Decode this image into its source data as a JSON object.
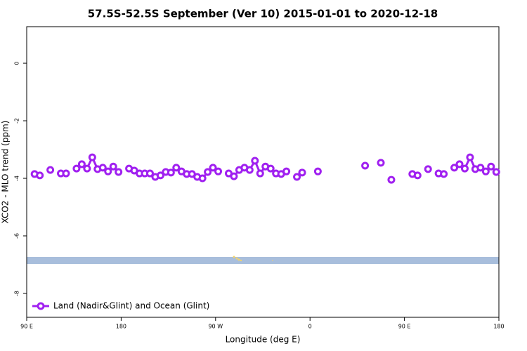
{
  "chart_data": {
    "type": "line",
    "title": "57.5S-52.5S September (Ver 10)   2015-01-01 to 2020-12-18",
    "x_label": "Longitude (deg E)",
    "y_label": "XCO2 - MLO trend (ppm)",
    "x": [
      97.5,
      102.5,
      107.5,
      112.5,
      117.5,
      122.5,
      127.5,
      132.5,
      137.5,
      142.5,
      147.5,
      152.5,
      157.5,
      162.5,
      167.5,
      172.5,
      177.5,
      182.5,
      187.5,
      192.5,
      197.5,
      202.5,
      207.5,
      212.5,
      217.5,
      222.5,
      227.5,
      232.5,
      237.5,
      242.5,
      247.5,
      252.5,
      257.5,
      262.5,
      267.5,
      272.5,
      277.5,
      282.5,
      287.5,
      292.5,
      297.5,
      302.5,
      307.5,
      312.5,
      317.5,
      322.5,
      327.5,
      332.5,
      337.5,
      342.5,
      347.5,
      352.5,
      357.5,
      367.5,
      372.5,
      412.5,
      417.5,
      427.5,
      432.5,
      437.5,
      442.5,
      457.5,
      462.5,
      467.5,
      472.5,
      477.5,
      482.5,
      487.5,
      492.5,
      497.5,
      502.5,
      507.5,
      512.5,
      517.5,
      522.5,
      527.5,
      532.5,
      537.5
    ],
    "series": [
      {
        "name": "Land (Nadir&Glint) and Ocean (Glint)",
        "color": "#a020f0",
        "values": [
          -3.85,
          -3.9,
          null,
          -3.71,
          null,
          -3.83,
          -3.83,
          null,
          -3.66,
          -3.51,
          -3.66,
          -3.27,
          -3.68,
          -3.63,
          -3.76,
          -3.59,
          -3.78,
          null,
          -3.66,
          -3.73,
          -3.83,
          -3.83,
          -3.83,
          -3.95,
          -3.9,
          -3.78,
          -3.8,
          -3.63,
          -3.76,
          -3.85,
          -3.85,
          -3.95,
          -4.0,
          -3.78,
          -3.63,
          -3.76,
          null,
          -3.83,
          -3.93,
          -3.71,
          -3.63,
          -3.71,
          -3.39,
          -3.83,
          -3.59,
          -3.66,
          -3.83,
          -3.85,
          -3.76,
          null,
          -3.95,
          -3.8,
          null,
          -3.76,
          null,
          -3.56,
          null,
          -3.46,
          null,
          -4.05,
          null,
          -3.85,
          -3.9,
          null,
          -3.68,
          null,
          -3.83,
          -3.85,
          null,
          -3.63,
          -3.51,
          -3.66,
          -3.27,
          -3.68,
          -3.63,
          -3.76,
          -3.59,
          -3.78
        ]
      }
    ],
    "xlim": [
      90,
      540
    ],
    "xticks": [
      {
        "value": 90,
        "label": "90 E"
      },
      180,
      {
        "value": 270,
        "label": "90 W"
      },
      {
        "value": 360,
        "label": "0"
      },
      {
        "value": 450,
        "label": "90 E"
      },
      {
        "value": 540,
        "label": "180"
      }
    ],
    "ylim": [
      -8.83,
      1.27
    ],
    "yticks": [
      -8,
      -6,
      -4,
      -2,
      0
    ],
    "legend": "bottom-left"
  }
}
